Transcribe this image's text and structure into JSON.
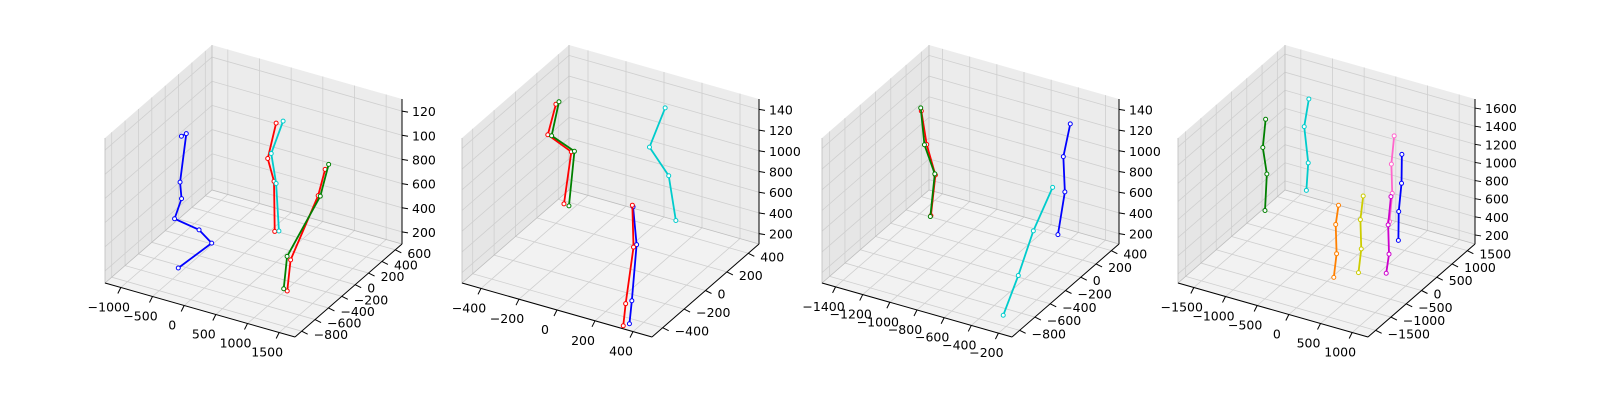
{
  "chart_data": [
    {
      "type": "scatter",
      "subtype": "3d-skeleton",
      "grid": true,
      "x_ticks": [
        "−1000",
        "−500",
        "0",
        "500",
        "1000",
        "1500"
      ],
      "y_ticks": [
        "−800",
        "−600",
        "−400",
        "−200",
        "0",
        "200",
        "400",
        "600"
      ],
      "z_ticks": [
        "200",
        "400",
        "600",
        "800",
        "100",
        "120"
      ],
      "xlim": [
        -1100,
        1600
      ],
      "ylim": [
        -850,
        700
      ],
      "zlim": [
        100,
        1300
      ],
      "skeletons": [
        {
          "color": "#0000ff",
          "points": [
            [
              -750,
              -100,
              1000
            ],
            [
              -700,
              -80,
              1020
            ],
            [
              -720,
              -150,
              650
            ],
            [
              -650,
              -200,
              550
            ],
            [
              -700,
              -250,
              400
            ],
            [
              -450,
              -150,
              300
            ],
            [
              -300,
              -120,
              200
            ],
            [
              -500,
              -400,
              100
            ]
          ]
        },
        {
          "color": "#ff0000",
          "points": [
            [
              400,
              100,
              1200
            ],
            [
              300,
              80,
              900
            ],
            [
              350,
              120,
              700
            ],
            [
              380,
              100,
              300
            ]
          ]
        },
        {
          "color": "#00cccc",
          "points": [
            [
              450,
              150,
              1200
            ],
            [
              350,
              80,
              950
            ],
            [
              400,
              100,
              700
            ],
            [
              420,
              120,
              300
            ]
          ]
        },
        {
          "color": "#ff0000",
          "points": [
            [
              900,
              300,
              800
            ],
            [
              850,
              250,
              600
            ],
            [
              900,
              -200,
              300
            ],
            [
              950,
              -300,
              100
            ]
          ]
        },
        {
          "color": "#008000",
          "points": [
            [
              950,
              300,
              850
            ],
            [
              880,
              250,
              600
            ],
            [
              850,
              -200,
              320
            ],
            [
              900,
              -300,
              110
            ]
          ]
        }
      ]
    },
    {
      "type": "scatter",
      "subtype": "3d-skeleton",
      "grid": true,
      "x_ticks": [
        "−400",
        "−200",
        "0",
        "200",
        "400"
      ],
      "y_ticks": [
        "−400",
        "−200",
        "0",
        "200",
        "400"
      ],
      "z_ticks": [
        "200",
        "400",
        "600",
        "800",
        "1000",
        "120",
        "140"
      ],
      "xlim": [
        -500,
        500
      ],
      "ylim": [
        -450,
        450
      ],
      "zlim": [
        100,
        1550
      ],
      "skeletons": [
        {
          "color": "#ff0000",
          "points": [
            [
              -350,
              100,
              1400
            ],
            [
              -380,
              80,
              1100
            ],
            [
              -300,
              150,
              900
            ],
            [
              -320,
              120,
              400
            ]
          ]
        },
        {
          "color": "#008000",
          "points": [
            [
              -340,
              110,
              1420
            ],
            [
              -360,
              80,
              1100
            ],
            [
              -290,
              160,
              900
            ],
            [
              -300,
              130,
              380
            ]
          ]
        },
        {
          "color": "#00cccc",
          "points": [
            [
              100,
              300,
              1400
            ],
            [
              80,
              200,
              1100
            ],
            [
              150,
              250,
              800
            ],
            [
              200,
              230,
              400
            ]
          ]
        },
        {
          "color": "#0000ff",
          "points": [
            [
              150,
              -50,
              800
            ],
            [
              200,
              -100,
              500
            ],
            [
              300,
              -300,
              200
            ],
            [
              350,
              -400,
              100
            ]
          ]
        },
        {
          "color": "#ff0000",
          "points": [
            [
              140,
              -40,
              800
            ],
            [
              190,
              -110,
              480
            ],
            [
              280,
              -320,
              180
            ],
            [
              330,
              -420,
              90
            ]
          ]
        }
      ]
    },
    {
      "type": "scatter",
      "subtype": "3d-skeleton",
      "grid": true,
      "x_ticks": [
        "−1400",
        "−1200",
        "−1000",
        "−800",
        "−600",
        "−400",
        "−200"
      ],
      "y_ticks": [
        "−800",
        "−600",
        "−400",
        "−200",
        "0",
        "200",
        "400"
      ],
      "z_ticks": [
        "200",
        "400",
        "600",
        "800",
        "1000",
        "120",
        "140"
      ],
      "xlim": [
        -1450,
        -100
      ],
      "ylim": [
        -850,
        450
      ],
      "zlim": [
        100,
        1550
      ],
      "skeletons": [
        {
          "color": "#ff0000",
          "points": [
            [
              -1300,
              100,
              1200
            ],
            [
              -1250,
              80,
              900
            ],
            [
              -1200,
              100,
              600
            ],
            [
              -1220,
              80,
              200
            ]
          ]
        },
        {
          "color": "#008000",
          "points": [
            [
              -1310,
              110,
              1220
            ],
            [
              -1260,
              70,
              900
            ],
            [
              -1210,
              110,
              600
            ],
            [
              -1230,
              90,
              180
            ]
          ]
        },
        {
          "color": "#0000ff",
          "points": [
            [
              -300,
              200,
              1400
            ],
            [
              -320,
              150,
              1100
            ],
            [
              -280,
              100,
              800
            ],
            [
              -300,
              50,
              400
            ]
          ]
        },
        {
          "color": "#00cccc",
          "points": [
            [
              -250,
              -100,
              1000
            ],
            [
              -270,
              -300,
              700
            ],
            [
              -260,
              -500,
              400
            ],
            [
              -250,
              -700,
              150
            ]
          ]
        }
      ]
    },
    {
      "type": "scatter",
      "subtype": "3d-skeleton",
      "grid": true,
      "x_ticks": [
        "−1500",
        "−1000",
        "−500",
        "0",
        "500",
        "1000"
      ],
      "y_ticks": [
        "−1500",
        "−1000",
        "−500",
        "0",
        "500",
        "1000",
        "1500"
      ],
      "z_ticks": [
        "200",
        "400",
        "600",
        "800",
        "1000",
        "1200",
        "1400",
        "1600"
      ],
      "xlim": [
        -1700,
        1400
      ],
      "ylim": [
        -1700,
        1700
      ],
      "zlim": [
        100,
        1700
      ],
      "skeletons": [
        {
          "color": "#008000",
          "points": [
            [
              -1400,
              500,
              1300
            ],
            [
              -1420,
              450,
              1000
            ],
            [
              -1380,
              500,
              700
            ],
            [
              -1400,
              480,
              300
            ]
          ]
        },
        {
          "color": "#00cccc",
          "points": [
            [
              -900,
              900,
              1500
            ],
            [
              -950,
              850,
              1200
            ],
            [
              -900,
              880,
              800
            ],
            [
              -920,
              860,
              500
            ]
          ]
        },
        {
          "color": "#ff8000",
          "points": [
            [
              200,
              -300,
              900
            ],
            [
              180,
              -350,
              700
            ],
            [
              220,
              -400,
              400
            ],
            [
              200,
              -450,
              150
            ]
          ]
        },
        {
          "color": "#cccc00",
          "points": [
            [
              500,
              -100,
              1000
            ],
            [
              480,
              -150,
              750
            ],
            [
              520,
              -200,
              450
            ],
            [
              500,
              -250,
              200
            ]
          ]
        },
        {
          "color": "#ff66cc",
          "points": [
            [
              800,
              300,
              1600
            ],
            [
              780,
              250,
              1300
            ],
            [
              820,
              200,
              1000
            ],
            [
              800,
              150,
              700
            ]
          ]
        },
        {
          "color": "#cc00cc",
          "points": [
            [
              850,
              100,
              1000
            ],
            [
              830,
              50,
              700
            ],
            [
              870,
              0,
              400
            ],
            [
              850,
              -50,
              200
            ]
          ]
        },
        {
          "color": "#0000ff",
          "points": [
            [
              900,
              350,
              1400
            ],
            [
              920,
              300,
              1100
            ],
            [
              900,
              250,
              800
            ],
            [
              920,
              200,
              500
            ]
          ]
        }
      ]
    }
  ]
}
